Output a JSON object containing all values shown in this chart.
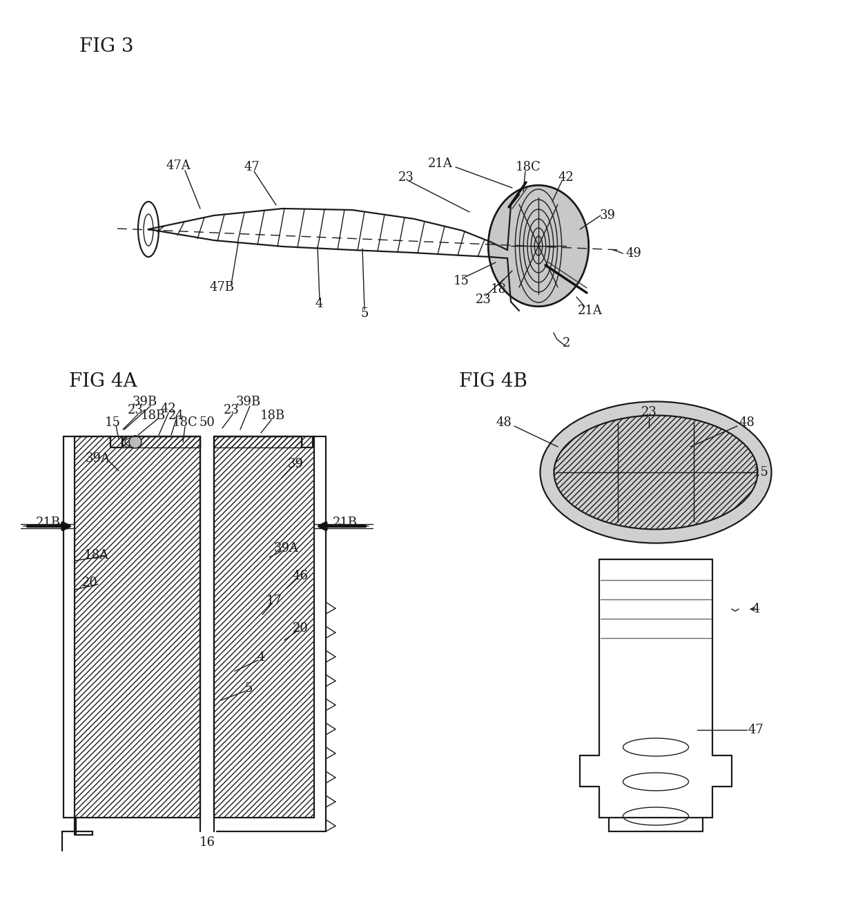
{
  "bg_color": "#ffffff",
  "line_color": "#1a1a1a",
  "fig3_label": "FIG 3",
  "fig4a_label": "FIG 4A",
  "fig4b_label": "FIG 4B",
  "lw_main": 1.6,
  "lw_thin": 1.0,
  "lw_thick": 2.5,
  "font_size_title": 20,
  "font_size_label": 13
}
